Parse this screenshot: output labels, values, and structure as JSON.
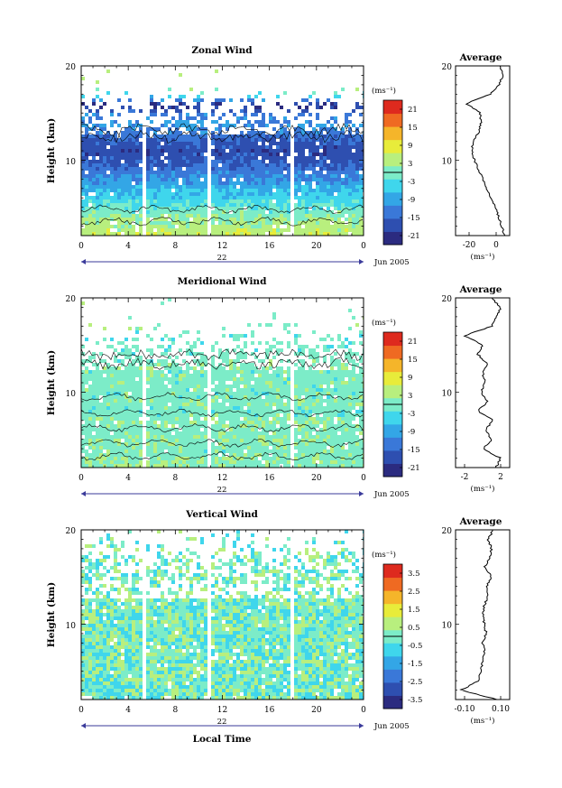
{
  "colors": {
    "colormap": [
      "#2b2b80",
      "#2e4fb0",
      "#3a78d8",
      "#33a6e6",
      "#3fd6ec",
      "#7cecc8",
      "#b8ef7e",
      "#e8ec3a",
      "#f5b52a",
      "#ef6a22",
      "#de2a1e"
    ],
    "contour": "#000000",
    "axis": "#000000",
    "date_arrow": "#3a3a9a"
  },
  "x_axis": {
    "ticks": [
      "0",
      "4",
      "8",
      "12",
      "16",
      "20",
      "0"
    ],
    "date_label": "22",
    "month_label": "Jun 2005",
    "label": "Local Time"
  },
  "height_axis": {
    "label": "Height (km)",
    "ticks": [
      "20",
      "10"
    ]
  },
  "unit_label": "(ms⁻¹)",
  "average_title": "Average",
  "chart_data": [
    {
      "type": "heatmap",
      "title": "Zonal Wind",
      "ylabel": "Height (km)",
      "xlabel": "",
      "xlim": [
        0,
        24
      ],
      "ylim": [
        2,
        20
      ],
      "colorbar": {
        "ticks": [
          "21",
          "15",
          "9",
          "3",
          "-3",
          "-9",
          "-15",
          "-21"
        ],
        "min": -24,
        "max": 24
      },
      "data_top_km": 18,
      "gaps_hours": [
        5.3,
        10.8,
        17.9
      ],
      "profile": {
        "km": [
          2,
          3,
          4,
          5,
          6,
          7,
          8,
          9,
          10,
          11,
          12,
          13,
          14,
          15,
          16,
          17,
          18,
          19,
          20
        ],
        "value": [
          6,
          4,
          2,
          -1,
          -4,
          -7,
          -10,
          -13,
          -16,
          -18,
          -17,
          -13,
          -11,
          -12,
          -22,
          -4,
          2,
          5,
          3
        ]
      }
    },
    {
      "type": "heatmap",
      "title": "Meridional Wind",
      "ylabel": "Height (km)",
      "xlabel": "",
      "xlim": [
        0,
        24
      ],
      "ylim": [
        2,
        20
      ],
      "colorbar": {
        "ticks": [
          "21",
          "15",
          "9",
          "3",
          "-3",
          "-9",
          "-15",
          "-21"
        ],
        "min": -24,
        "max": 24
      },
      "data_top_km": 17.5,
      "gaps_hours": [
        5.3,
        10.8,
        17.9
      ],
      "profile": {
        "km": [
          2,
          3,
          4,
          5,
          6,
          7,
          8,
          9,
          10,
          11,
          12,
          13,
          14,
          15,
          16,
          17,
          18,
          19,
          20
        ],
        "value": [
          1.5,
          2,
          0,
          1,
          0.3,
          1.2,
          -0.5,
          0.5,
          -0.2,
          0.3,
          0,
          0.5,
          -0.5,
          0,
          -2,
          1,
          1.5,
          2,
          1
        ]
      }
    },
    {
      "type": "heatmap",
      "title": "Vertical Wind",
      "ylabel": "Height (km)",
      "xlabel": "Local Time",
      "xlim": [
        0,
        24
      ],
      "ylim": [
        2,
        20
      ],
      "colorbar": {
        "ticks": [
          "3.5",
          "2.5",
          "1.5",
          "0.5",
          "-0.5",
          "-1.5",
          "-2.5",
          "-3.5"
        ],
        "min": -4,
        "max": 4
      },
      "data_top_km": 20,
      "gaps_hours": [
        5.3,
        10.8,
        17.9
      ],
      "profile": {
        "km": [
          2,
          3,
          4,
          5,
          6,
          7,
          8,
          9,
          10,
          11,
          12,
          13,
          14,
          15,
          16,
          17,
          18,
          19,
          20
        ],
        "value": [
          0.08,
          -0.12,
          -0.02,
          -0.01,
          0.0,
          0.01,
          0.0,
          0.02,
          0.01,
          0.0,
          0.01,
          0.03,
          0.02,
          0.05,
          0.01,
          0.04,
          0.05,
          0.03,
          0.06
        ]
      }
    }
  ],
  "average_axes": [
    {
      "xticks": [
        "-20",
        "0"
      ],
      "xlim": [
        -30,
        10
      ],
      "xticks_values": [
        -20,
        0
      ]
    },
    {
      "xticks": [
        "-2",
        "2"
      ],
      "xlim": [
        -3,
        3
      ],
      "xticks_values": [
        -2,
        2
      ]
    },
    {
      "xticks": [
        "-0.10",
        "0.10"
      ],
      "xlim": [
        -0.15,
        0.15
      ],
      "xticks_values": [
        -0.1,
        0.1
      ]
    }
  ]
}
